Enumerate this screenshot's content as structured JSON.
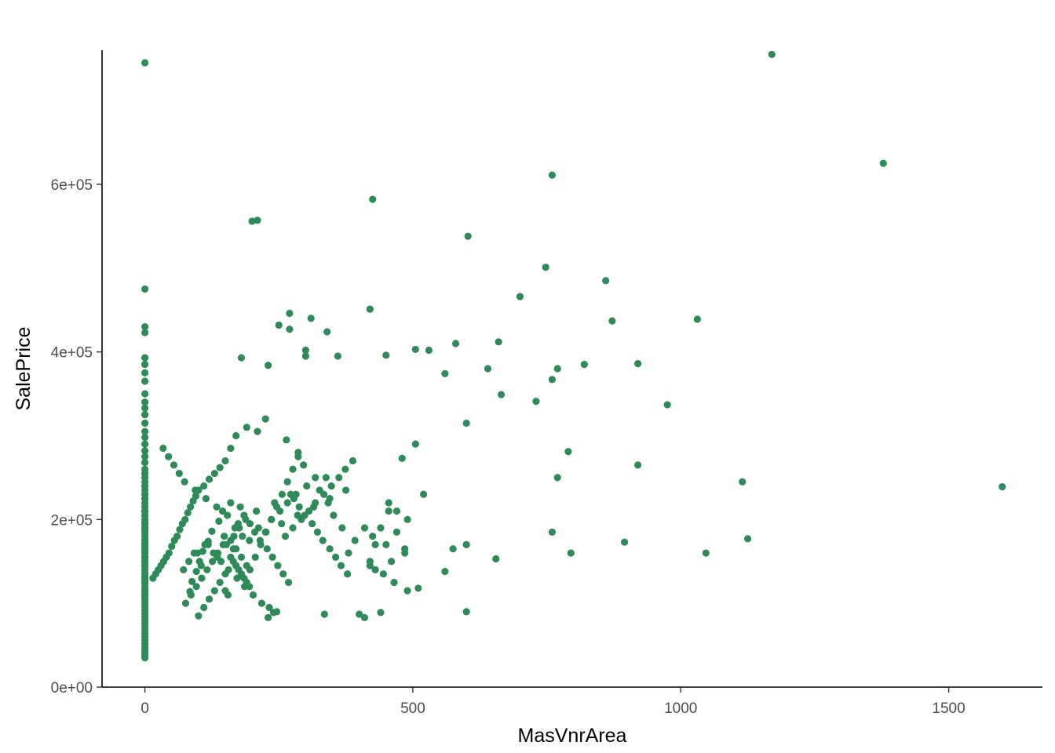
{
  "chart_data": {
    "type": "scatter",
    "title": "",
    "xlabel": "MasVnrArea",
    "ylabel": "SalePrice",
    "xlim": [
      -80,
      1675
    ],
    "ylim": [
      0,
      760000
    ],
    "xticks": [
      0,
      500,
      1000,
      1500
    ],
    "xtick_labels": [
      "0",
      "500",
      "1000",
      "1500"
    ],
    "yticks": [
      0,
      200000,
      400000,
      600000
    ],
    "ytick_labels": [
      "0e+00",
      "2e+05",
      "4e+05",
      "6e+05"
    ],
    "grid": false,
    "legend": "none",
    "point_color": "#2E8B57",
    "series": [
      {
        "x": [
          0,
          0,
          0,
          0,
          0,
          0,
          0,
          0,
          0,
          0,
          0,
          0,
          0,
          0,
          0,
          0,
          0,
          0,
          0,
          0,
          0,
          0,
          0,
          0,
          0,
          0,
          0,
          0,
          0,
          0,
          0,
          0,
          0,
          0,
          0,
          0,
          0,
          0,
          0,
          0,
          0,
          0,
          0,
          0,
          0,
          0,
          0,
          0,
          0,
          0,
          0,
          0,
          0,
          0,
          0,
          0,
          0,
          0,
          0,
          0,
          0,
          0,
          0,
          0,
          0,
          0,
          0,
          0,
          0,
          0,
          0,
          0,
          0,
          0,
          0,
          0,
          0,
          0,
          0,
          0,
          0,
          0,
          0,
          0,
          0,
          0,
          0,
          0,
          0,
          0,
          0,
          0,
          0,
          1170,
          1378,
          760,
          425,
          200,
          210,
          603,
          748,
          860,
          700,
          872,
          1031,
          420,
          270,
          310,
          340,
          300,
          180,
          230,
          920,
          975,
          820,
          770,
          760,
          640,
          580,
          530,
          505,
          560,
          660,
          665,
          730,
          600,
          790,
          920,
          1115,
          770,
          1600,
          760,
          1125,
          895,
          1047,
          795,
          655,
          560,
          575,
          510,
          600,
          440,
          410,
          230,
          240,
          335,
          400,
          600,
          505,
          480,
          450,
          360,
          300,
          270,
          250,
          225,
          210,
          190,
          170,
          160,
          150,
          140,
          130,
          120,
          110,
          100,
          95,
          90,
          85,
          80,
          75,
          70,
          65,
          60,
          55,
          50,
          45,
          40,
          35,
          30,
          25,
          20,
          15,
          160,
          145,
          138,
          125,
          118,
          108,
          102,
          96,
          88,
          84,
          178,
          185,
          196,
          205,
          215,
          228,
          238,
          248,
          258,
          268,
          278,
          288,
          298,
          312,
          322,
          332,
          345,
          356,
          366,
          378,
          112,
          128,
          142,
          156,
          172,
          186,
          202,
          218,
          232,
          246,
          262,
          276,
          292,
          306,
          318,
          334,
          348,
          362,
          374,
          388,
          105,
          135,
          165,
          195,
          225,
          255,
          285,
          315,
          345,
          375,
          98,
          118,
          148,
          168,
          188,
          208,
          242,
          272,
          302,
          338,
          72,
          82,
          92,
          152,
          182,
          212,
          236,
          252,
          266,
          282,
          176,
          166,
          146,
          136,
          126,
          116,
          106,
          96,
          86,
          76,
          160,
          170,
          180,
          190,
          150,
          140,
          130,
          120,
          110,
          100,
          196,
          206,
          216,
          226,
          236,
          246,
          256,
          266,
          276,
          286,
          174,
          154,
          134,
          114,
          94,
          74,
          64,
          54,
          44,
          34,
          420,
          430,
          440,
          455,
          470,
          485,
          420,
          445,
          465,
          490,
          430,
          460,
          485,
          450,
          425,
          410,
          490,
          470,
          455,
          520,
          380,
          392,
          368,
          352,
          342,
          326,
          318,
          296,
          286,
          264,
          160,
          165,
          170,
          175,
          180,
          185,
          190,
          195,
          150,
          155
        ],
        "y": [
          745000,
          475000,
          430000,
          423000,
          393000,
          385000,
          375000,
          365000,
          350000,
          340000,
          333000,
          325000,
          315000,
          305000,
          298000,
          290000,
          282000,
          275000,
          268000,
          260000,
          255000,
          250000,
          245000,
          240000,
          235000,
          230000,
          225000,
          220000,
          215000,
          210000,
          205000,
          200000,
          196000,
          192000,
          188000,
          184000,
          180000,
          176000,
          172000,
          168000,
          164000,
          160000,
          156000,
          152000,
          148000,
          144000,
          140000,
          136000,
          132000,
          128000,
          124000,
          120000,
          116000,
          112000,
          108000,
          104000,
          100000,
          96000,
          92000,
          88000,
          84000,
          80000,
          76000,
          72000,
          68000,
          64000,
          60000,
          56000,
          52000,
          48000,
          45000,
          42000,
          39000,
          37000,
          35000,
          170000,
          190000,
          210000,
          230000,
          150000,
          130000,
          110000,
          165000,
          185000,
          205000,
          145000,
          125000,
          175000,
          195000,
          155000,
          135000,
          115000,
          162000,
          755000,
          625000,
          611000,
          582000,
          556000,
          557000,
          538000,
          501000,
          485000,
          466000,
          437000,
          439000,
          451000,
          446000,
          440000,
          424000,
          402000,
          393000,
          384000,
          386000,
          337000,
          385000,
          380000,
          367000,
          380000,
          410000,
          402000,
          403000,
          374000,
          412000,
          349000,
          341000,
          315000,
          281000,
          265000,
          245000,
          250000,
          239000,
          185000,
          177000,
          173000,
          160000,
          160000,
          153000,
          138000,
          165000,
          118000,
          90000,
          89000,
          83000,
          83000,
          89000,
          87000,
          87000,
          170000,
          290000,
          273000,
          396000,
          395000,
          395000,
          427000,
          432000,
          320000,
          305000,
          310000,
          300000,
          285000,
          270000,
          262000,
          255000,
          248000,
          240000,
          235000,
          228000,
          222000,
          215000,
          208000,
          200000,
          195000,
          188000,
          180000,
          175000,
          168000,
          160000,
          155000,
          150000,
          145000,
          140000,
          135000,
          130000,
          220000,
          210000,
          198000,
          186000,
          174000,
          162000,
          150000,
          138000,
          126000,
          114000,
          215000,
          205000,
          195000,
          185000,
          175000,
          165000,
          155000,
          145000,
          135000,
          125000,
          225000,
          215000,
          205000,
          195000,
          185000,
          175000,
          165000,
          155000,
          145000,
          135000,
          170000,
          160000,
          150000,
          140000,
          130000,
          120000,
          110000,
          100000,
          95000,
          90000,
          180000,
          190000,
          200000,
          210000,
          220000,
          230000,
          240000,
          250000,
          260000,
          270000,
          145000,
          155000,
          165000,
          175000,
          185000,
          195000,
          205000,
          215000,
          225000,
          235000,
          160000,
          170000,
          180000,
          190000,
          200000,
          210000,
          220000,
          230000,
          240000,
          250000,
          140000,
          150000,
          160000,
          170000,
          180000,
          190000,
          200000,
          210000,
          220000,
          230000,
          190000,
          180000,
          170000,
          160000,
          150000,
          140000,
          130000,
          120000,
          110000,
          100000,
          175000,
          165000,
          155000,
          145000,
          135000,
          125000,
          115000,
          105000,
          95000,
          85000,
          140000,
          155000,
          170000,
          185000,
          200000,
          215000,
          230000,
          245000,
          260000,
          275000,
          195000,
          205000,
          215000,
          225000,
          235000,
          245000,
          255000,
          265000,
          275000,
          285000,
          150000,
          170000,
          190000,
          210000,
          185000,
          165000,
          145000,
          135000,
          125000,
          115000,
          140000,
          150000,
          160000,
          170000,
          180000,
          190000,
          200000,
          210000,
          220000,
          230000,
          160000,
          175000,
          190000,
          205000,
          220000,
          235000,
          250000,
          265000,
          280000,
          295000,
          155000,
          150000,
          145000,
          140000,
          135000,
          130000,
          125000,
          120000,
          115000,
          110000
        ]
      }
    ]
  }
}
